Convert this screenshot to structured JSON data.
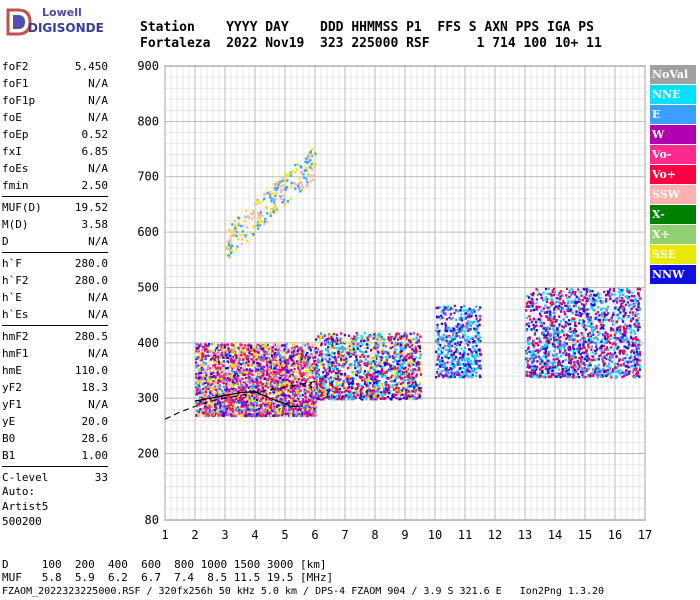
{
  "logo": {
    "line1": "Lowell",
    "line2": "DIGISONDE"
  },
  "header": {
    "line1": "Station    YYYY DAY    DDD HHMMSS P1  FFS S AXN PPS IGA PS",
    "line2": "Fortaleza  2022 Nov19  323 225000 RSF      1 714 100 10+ 11"
  },
  "params": {
    "group1": [
      {
        "name": "foF2",
        "value": "5.450"
      },
      {
        "name": "foF1",
        "value": "N/A"
      },
      {
        "name": "foF1p",
        "value": "N/A"
      },
      {
        "name": "foE",
        "value": "N/A"
      },
      {
        "name": "foEp",
        "value": "0.52"
      },
      {
        "name": "fxI",
        "value": "6.85"
      },
      {
        "name": "foEs",
        "value": "N/A"
      },
      {
        "name": "fmin",
        "value": "2.50"
      }
    ],
    "group2": [
      {
        "name": "MUF(D)",
        "value": "19.52"
      },
      {
        "name": "M(D)",
        "value": "3.58"
      },
      {
        "name": "D",
        "value": "N/A"
      }
    ],
    "group3": [
      {
        "name": "h`F",
        "value": "280.0"
      },
      {
        "name": "h`F2",
        "value": "280.0"
      },
      {
        "name": "h`E",
        "value": "N/A"
      },
      {
        "name": "h`Es",
        "value": "N/A"
      }
    ],
    "group4": [
      {
        "name": "hmF2",
        "value": "280.5"
      },
      {
        "name": "hmF1",
        "value": "N/A"
      },
      {
        "name": "hmE",
        "value": "110.0"
      },
      {
        "name": "yF2",
        "value": "18.3"
      },
      {
        "name": "yF1",
        "value": "N/A"
      },
      {
        "name": "yE",
        "value": "20.0"
      },
      {
        "name": "B0",
        "value": "28.6"
      },
      {
        "name": "B1",
        "value": "1.00"
      }
    ],
    "group5": [
      {
        "name": "C-level",
        "value": "33"
      }
    ]
  },
  "extra": {
    "line1": "Auto:",
    "line2": "Artist5",
    "line3": "500200"
  },
  "legend": [
    {
      "label": "NoVal",
      "color": "#a0a0a0"
    },
    {
      "label": "NNE",
      "color": "#00e0ff"
    },
    {
      "label": "E",
      "color": "#3aa0ff"
    },
    {
      "label": "W",
      "color": "#b000b0"
    },
    {
      "label": "Vo-",
      "color": "#ff2a8c"
    },
    {
      "label": "Vo+",
      "color": "#ff0040"
    },
    {
      "label": "SSW",
      "color": "#ffb0b0"
    },
    {
      "label": "X-",
      "color": "#008000"
    },
    {
      "label": "X+",
      "color": "#90d070"
    },
    {
      "label": "SSE",
      "color": "#e8e800"
    },
    {
      "label": "NNW",
      "color": "#1010e0"
    }
  ],
  "footer": {
    "line1": "D     100  200  400  600  800 1000 1500 3000 [km]",
    "line2": "MUF   5.8  5.9  6.2  6.7  7.4  8.5 11.5 19.5 [MHz]",
    "line3": "FZAOM_2022323225000.RSF / 320fx256h 50 kHz 5.0 km / DPS-4 FZAOM 904 / 3.9 S 321.6 E   Ion2Png 1.3.20"
  },
  "chart_data": {
    "type": "scatter",
    "xlabel": "",
    "ylabel": "",
    "xlim": [
      1,
      17
    ],
    "ylim": [
      80,
      900
    ],
    "xticks": [
      1,
      2,
      3,
      4,
      5,
      6,
      7,
      8,
      9,
      10,
      11,
      12,
      13,
      14,
      15,
      16,
      17
    ],
    "yticks": [
      80,
      200,
      300,
      400,
      500,
      600,
      700,
      800,
      900
    ],
    "grid": true,
    "legend_position": "right",
    "clusters": [
      {
        "series": "main-F-trace",
        "x_range": [
          2.0,
          6.0
        ],
        "h_range": [
          270,
          400
        ],
        "colors": [
          "W",
          "Vo+",
          "Vo-",
          "E",
          "SSE",
          "SSW",
          "NNW"
        ]
      },
      {
        "series": "F-trace-mid",
        "x_range": [
          6.0,
          9.5
        ],
        "h_range": [
          300,
          420
        ],
        "colors": [
          "W",
          "Vo+",
          "E",
          "SSE",
          "NNE",
          "NNW"
        ]
      },
      {
        "series": "F-trace-upper",
        "x_range": [
          10.0,
          11.5
        ],
        "h_range": [
          340,
          470
        ],
        "colors": [
          "W",
          "E",
          "NNW",
          "NNE"
        ]
      },
      {
        "series": "F-trace-high-freq",
        "x_range": [
          13.0,
          16.8
        ],
        "h_range": [
          340,
          500
        ],
        "colors": [
          "NNW",
          "E",
          "W",
          "NNE",
          "Vo+"
        ]
      },
      {
        "series": "second-hop",
        "x_range": [
          3.0,
          6.0
        ],
        "h_range": [
          580,
          730
        ],
        "colors": [
          "SSE",
          "E",
          "SSW"
        ]
      }
    ],
    "profile_curve": [
      [
        2.0,
        295
      ],
      [
        2.5,
        300
      ],
      [
        3.0,
        305
      ],
      [
        3.5,
        310
      ],
      [
        4.0,
        312
      ],
      [
        4.5,
        300
      ],
      [
        5.0,
        290
      ],
      [
        5.2,
        285
      ],
      [
        5.5,
        285
      ]
    ],
    "profile_dashed": [
      [
        1.0,
        262
      ],
      [
        1.5,
        275
      ],
      [
        2.0,
        285
      ],
      [
        2.5,
        295
      ],
      [
        3.0,
        300
      ],
      [
        3.5,
        305
      ],
      [
        4.0,
        310
      ],
      [
        4.5,
        315
      ],
      [
        5.0,
        320
      ],
      [
        5.5,
        325
      ],
      [
        6.0,
        330
      ]
    ]
  }
}
